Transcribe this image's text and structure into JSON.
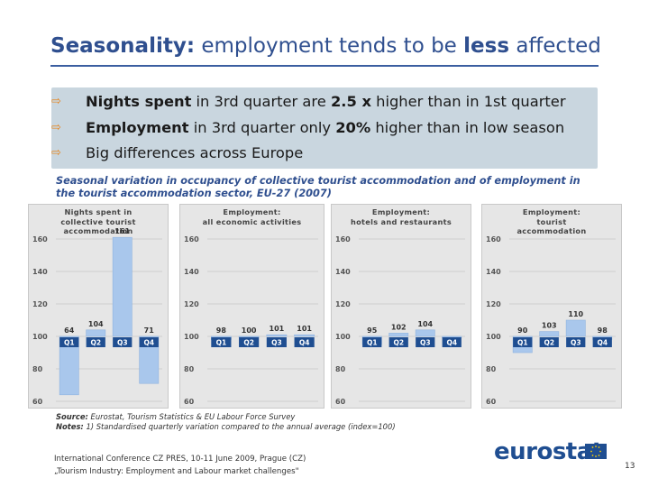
{
  "title": {
    "bold_part": "Seasonality:",
    "mid_part": " employment tends to be ",
    "emph_part": "less",
    "end_part": " affected"
  },
  "bullets": [
    {
      "bold": "Nights spent",
      "pre": " in 3rd quarter are ",
      "bold2": "2.5 x",
      "post": " higher than in 1st quarter"
    },
    {
      "bold": "Employment",
      "pre": " in 3rd quarter only ",
      "bold2": "20%",
      "post": " higher than in low season"
    },
    {
      "bold": "",
      "pre": "Big differences across Europe",
      "bold2": "",
      "post": ""
    }
  ],
  "chart_caption": "Seasonal variation in occupancy of collective tourist accommodation and of employment in the tourist accommodation sector, EU-27 (2007)",
  "chart_data": [
    {
      "type": "bar",
      "title": "Nights spent in collective tourist accommodation",
      "categories": [
        "Q1",
        "Q2",
        "Q3",
        "Q4"
      ],
      "values": [
        64,
        104,
        161,
        71
      ],
      "baseline": 100,
      "ylim": [
        60,
        160
      ],
      "yticks": [
        60,
        80,
        100,
        120,
        140,
        160
      ]
    },
    {
      "type": "bar",
      "title": "Employment: all economic activities",
      "categories": [
        "Q1",
        "Q2",
        "Q3",
        "Q4"
      ],
      "values": [
        98,
        100,
        101,
        101
      ],
      "baseline": 100,
      "ylim": [
        60,
        160
      ],
      "yticks": [
        60,
        80,
        100,
        120,
        140,
        160
      ]
    },
    {
      "type": "bar",
      "title": "Employment: hotels and restaurants",
      "categories": [
        "Q1",
        "Q2",
        "Q3",
        "Q4"
      ],
      "values": [
        95,
        102,
        104,
        99
      ],
      "value_labels": [
        "95",
        "102",
        "104",
        ""
      ],
      "baseline": 100,
      "ylim": [
        60,
        160
      ],
      "yticks": [
        60,
        80,
        100,
        120,
        140,
        160
      ]
    },
    {
      "type": "bar",
      "title": "Employment: tourist accommodation",
      "categories": [
        "Q1",
        "Q2",
        "Q3",
        "Q4"
      ],
      "values": [
        90,
        103,
        110,
        98
      ],
      "baseline": 100,
      "ylim": [
        60,
        160
      ],
      "yticks": [
        60,
        80,
        100,
        120,
        140,
        160
      ]
    }
  ],
  "panel_titles": [
    "Nights spent in\ncollective tourist\naccommodation",
    "Employment:\nall economic activities",
    "Employment:\nhotels and restaurants",
    "Employment:\ntourist\naccommodation"
  ],
  "source": {
    "source_label": "Source:",
    "source_text": " Eurostat, Tourism Statistics & EU Labour Force Survey",
    "notes_label": "Notes:",
    "notes_text": " 1) Standardised quarterly variation compared to the annual average (index=100)"
  },
  "footer": {
    "line1": "International Conference CZ PRES, 10-11 June 2009, Prague (CZ)",
    "line2": "„Tourism Industry: Employment and Labour market challenges\""
  },
  "logo_text": "eurostat",
  "page_number": "13",
  "colors": {
    "title": "#2f4f8f",
    "bar": "#a9c7ec",
    "bar_edge": "#8fb3e0",
    "qbox": "#1f4e91",
    "arrow": "#e6851f",
    "panel": "#e6e6e6",
    "bullet_box": "#c9d6df"
  }
}
